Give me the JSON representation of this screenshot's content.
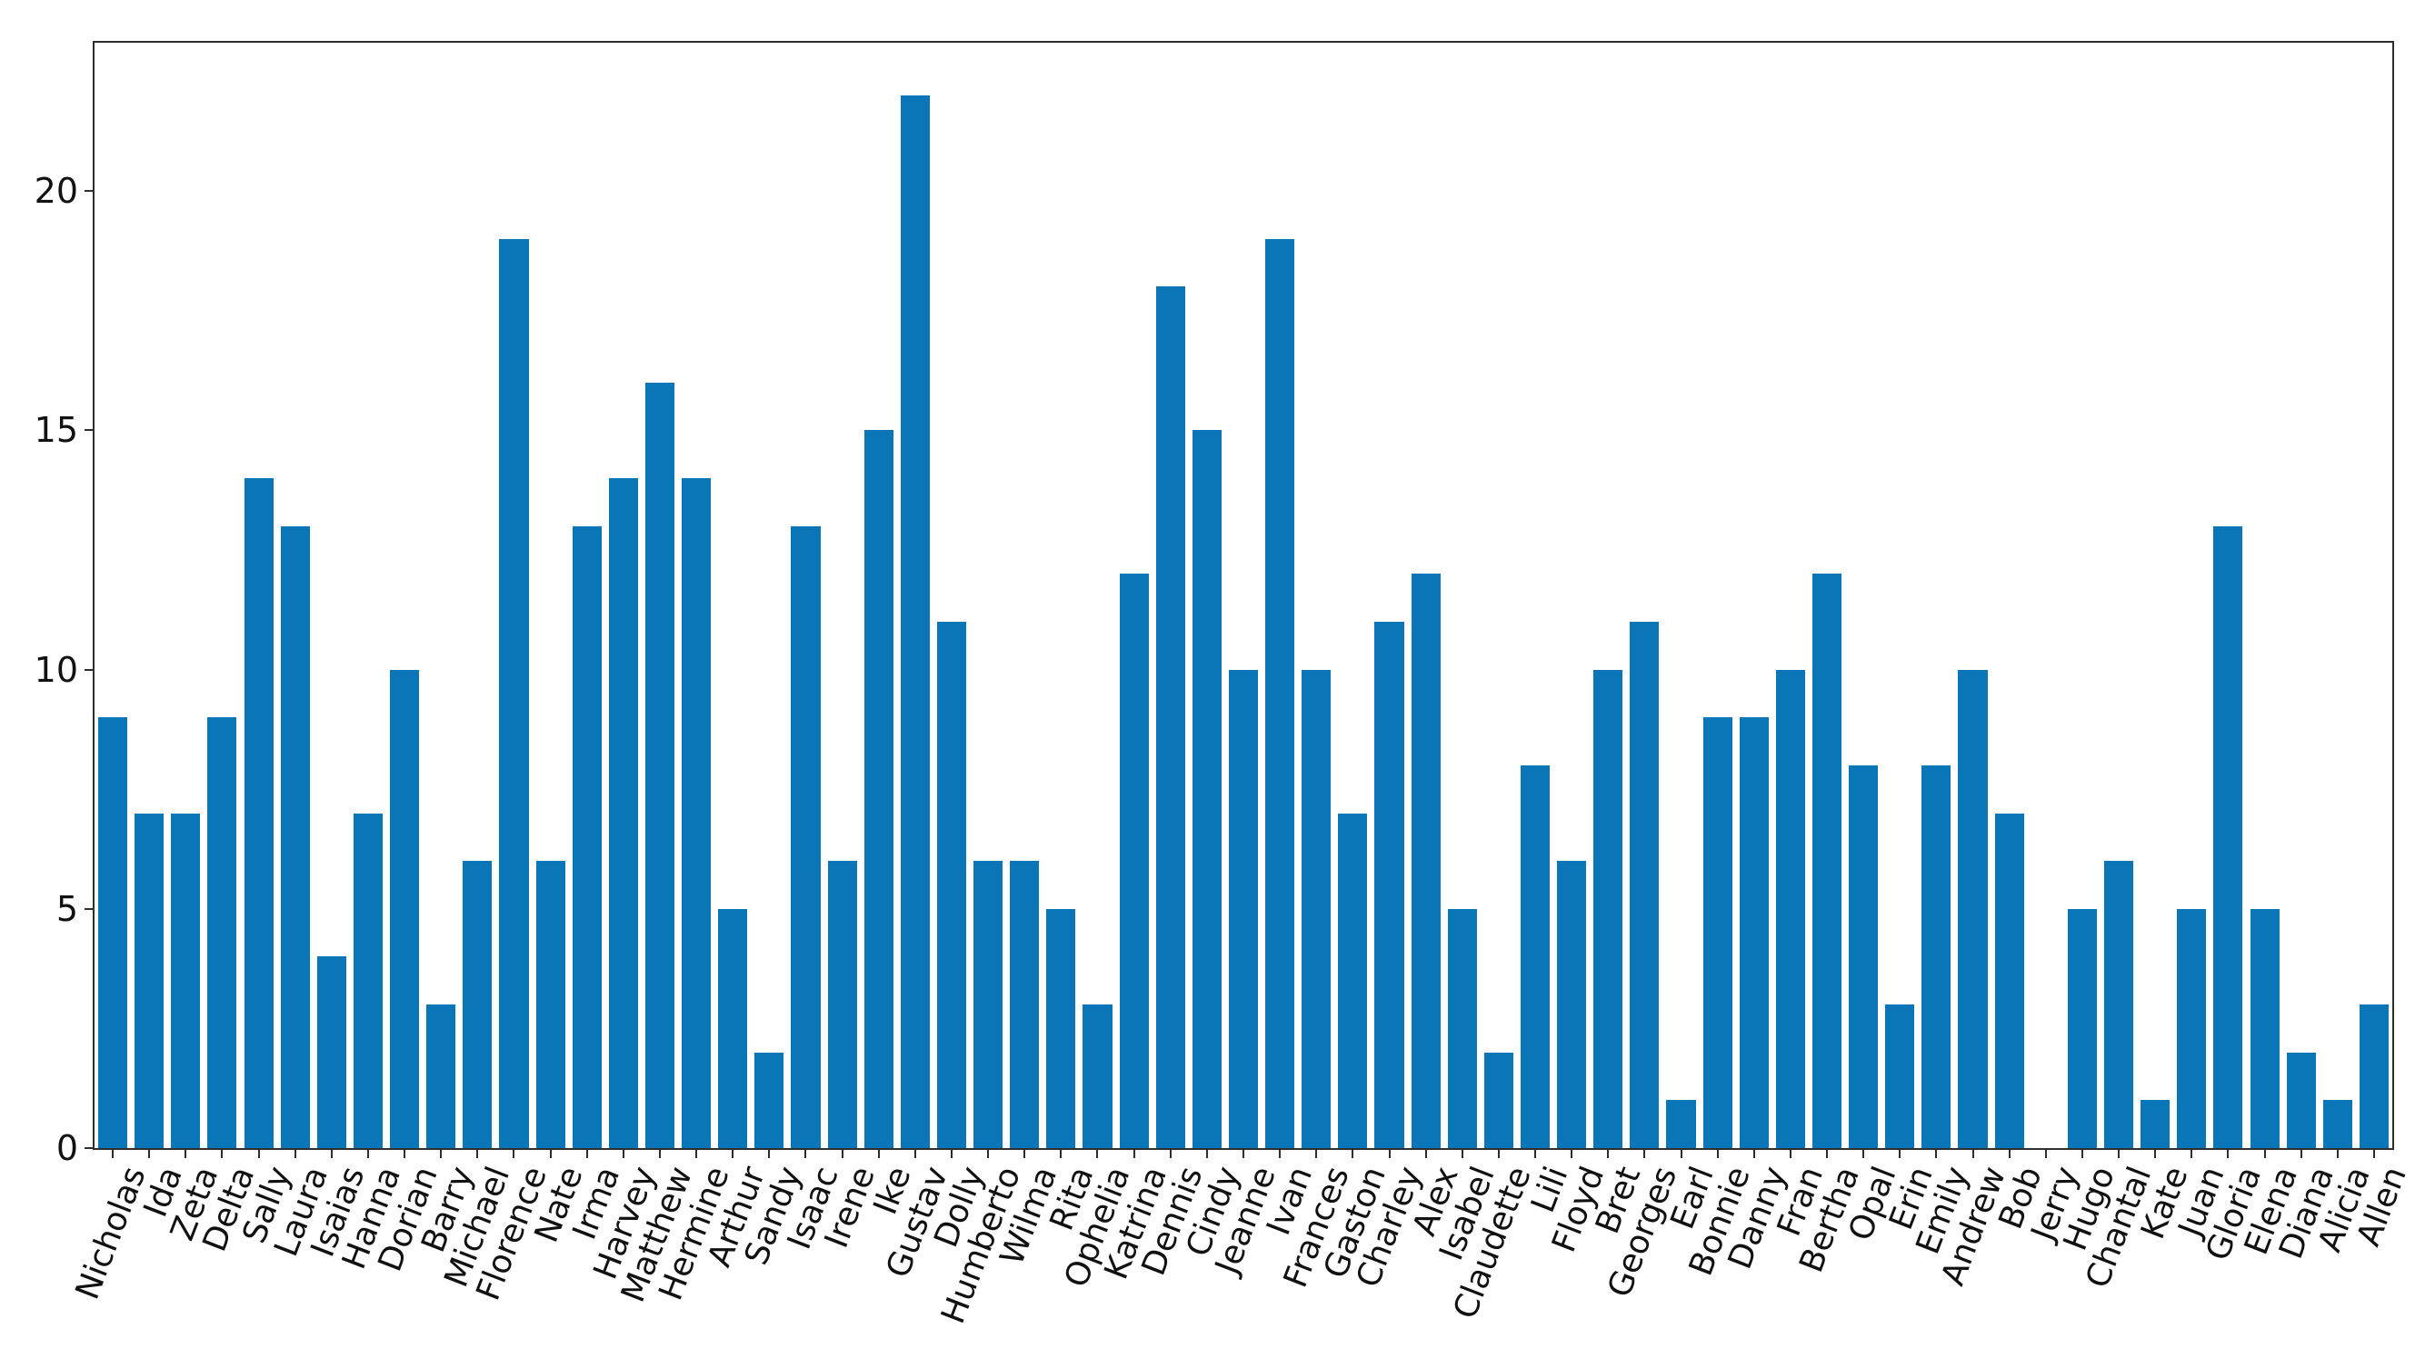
{
  "chart_data": {
    "type": "bar",
    "categories": [
      "Nicholas",
      "Ida",
      "Zeta",
      "Delta",
      "Sally",
      "Laura",
      "Isaias",
      "Hanna",
      "Dorian",
      "Barry",
      "Michael",
      "Florence",
      "Nate",
      "Irma",
      "Harvey",
      "Matthew",
      "Hermine",
      "Arthur",
      "Sandy",
      "Isaac",
      "Irene",
      "Ike",
      "Gustav",
      "Dolly",
      "Humberto",
      "Wilma",
      "Rita",
      "Ophelia",
      "Katrina",
      "Dennis",
      "Cindy",
      "Jeanne",
      "Ivan",
      "Frances",
      "Gaston",
      "Charley",
      "Alex",
      "Isabel",
      "Claudette",
      "Lili",
      "Floyd",
      "Bret",
      "Georges",
      "Earl",
      "Bonnie",
      "Danny",
      "Fran",
      "Bertha",
      "Opal",
      "Erin",
      "Emily",
      "Andrew",
      "Bob",
      "Jerry",
      "Hugo",
      "Chantal",
      "Kate",
      "Juan",
      "Gloria",
      "Elena",
      "Diana",
      "Alicia",
      "Allen"
    ],
    "values": [
      9,
      7,
      7,
      9,
      14,
      13,
      4,
      7,
      10,
      3,
      6,
      19,
      6,
      13,
      14,
      16,
      14,
      5,
      2,
      13,
      6,
      15,
      22,
      11,
      6,
      6,
      5,
      3,
      12,
      18,
      15,
      10,
      19,
      10,
      7,
      11,
      12,
      5,
      2,
      8,
      6,
      10,
      11,
      1,
      9,
      9,
      10,
      12,
      8,
      3,
      8,
      10,
      7,
      0,
      5,
      6,
      1,
      5,
      13,
      5,
      2,
      1,
      3
    ],
    "yticks": [
      0,
      5,
      10,
      15,
      20
    ],
    "ylim": [
      0,
      23.1
    ],
    "bar_width_fraction": 0.8,
    "x_tick_rotation_deg": 69,
    "grid": false,
    "legend": false,
    "bar_color": "#0a76b8",
    "axis_color": "#2e2e2e",
    "tick_label_color": "#111111",
    "background_color": "#ffffff"
  }
}
